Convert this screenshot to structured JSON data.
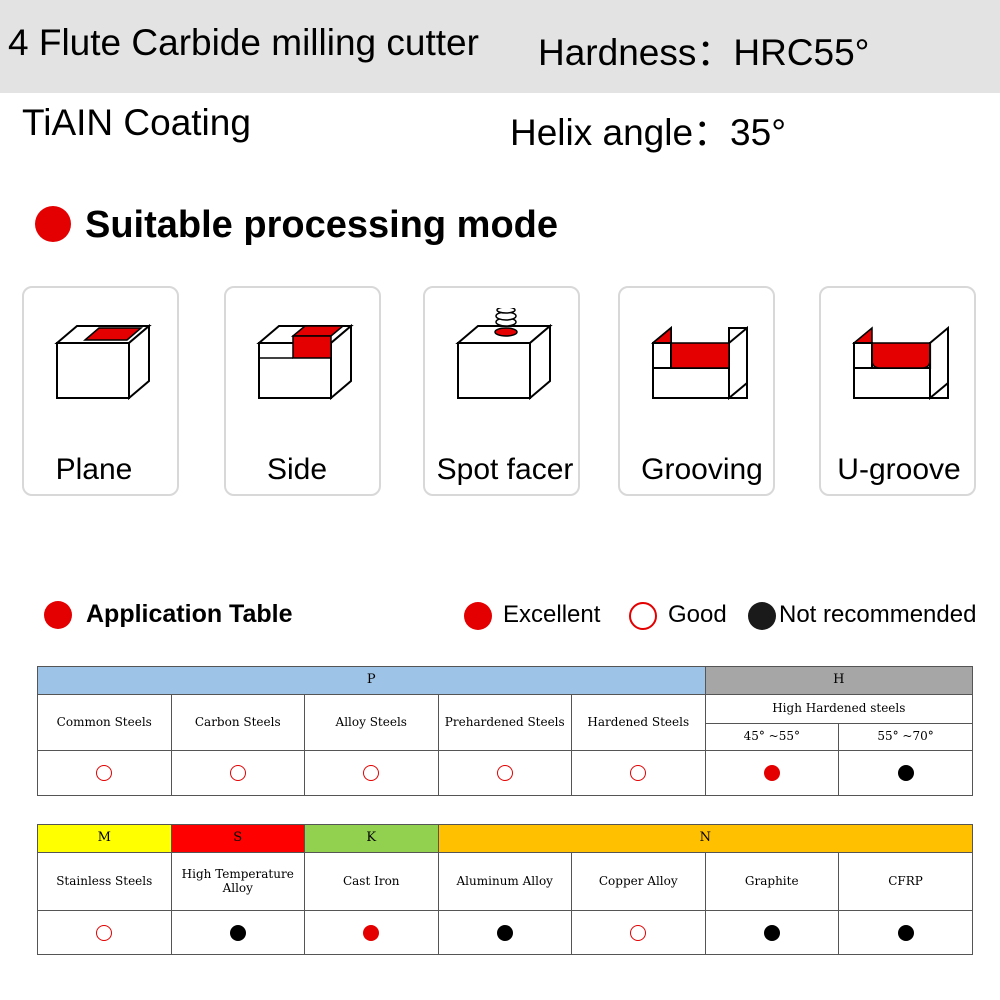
{
  "header": {
    "title": "4 Flute Carbide milling cutter",
    "hardness": "Hardness：HRC55°",
    "coating": "TiAIN Coating",
    "helix": "Helix angle：35°"
  },
  "processing": {
    "title": "Suitable processing mode",
    "modes": [
      {
        "label": "Plane",
        "icon": "plane-icon"
      },
      {
        "label": "Side",
        "icon": "side-icon"
      },
      {
        "label": "Spot facer",
        "icon": "spot-facer-icon"
      },
      {
        "label": "Grooving",
        "icon": "grooving-icon"
      },
      {
        "label": "U-groove",
        "icon": "u-groove-icon"
      }
    ]
  },
  "application": {
    "title": "Application Table",
    "legend": {
      "excellent": "Excellent",
      "good": "Good",
      "not_recommended": "Not recommended"
    }
  },
  "table1": {
    "groups": [
      {
        "label": "P",
        "color": "#9dc3e6"
      },
      {
        "label": "H",
        "color": "#a6a6a6"
      }
    ],
    "materials": [
      "Common Steels",
      "Carbon Steels",
      "Alloy Steels",
      "Prehardened Steels",
      "Hardened Steels"
    ],
    "h_header": "High Hardened steels",
    "h_sub": [
      "45° ~55°",
      "55° ~70°"
    ],
    "ratings": [
      "good",
      "good",
      "good",
      "good",
      "good",
      "excellent",
      "notrec"
    ]
  },
  "table2": {
    "groups": [
      {
        "label": "M",
        "color": "#ffff00"
      },
      {
        "label": "S",
        "color": "#ff0000"
      },
      {
        "label": "K",
        "color": "#92d050"
      },
      {
        "label": "N",
        "color": "#ffc000"
      }
    ],
    "materials": [
      "Stainless Steels",
      "High Temperature Alloy",
      "Cast Iron",
      "Aluminum Alloy",
      "Copper Alloy",
      "Graphite",
      "CFRP"
    ],
    "ratings": [
      "good",
      "notrec",
      "excellent",
      "notrec",
      "good",
      "notrec",
      "notrec"
    ]
  },
  "colors": {
    "red": "#e40000",
    "banner": "#e3e3e3",
    "card_border": "#d8d8d8"
  }
}
